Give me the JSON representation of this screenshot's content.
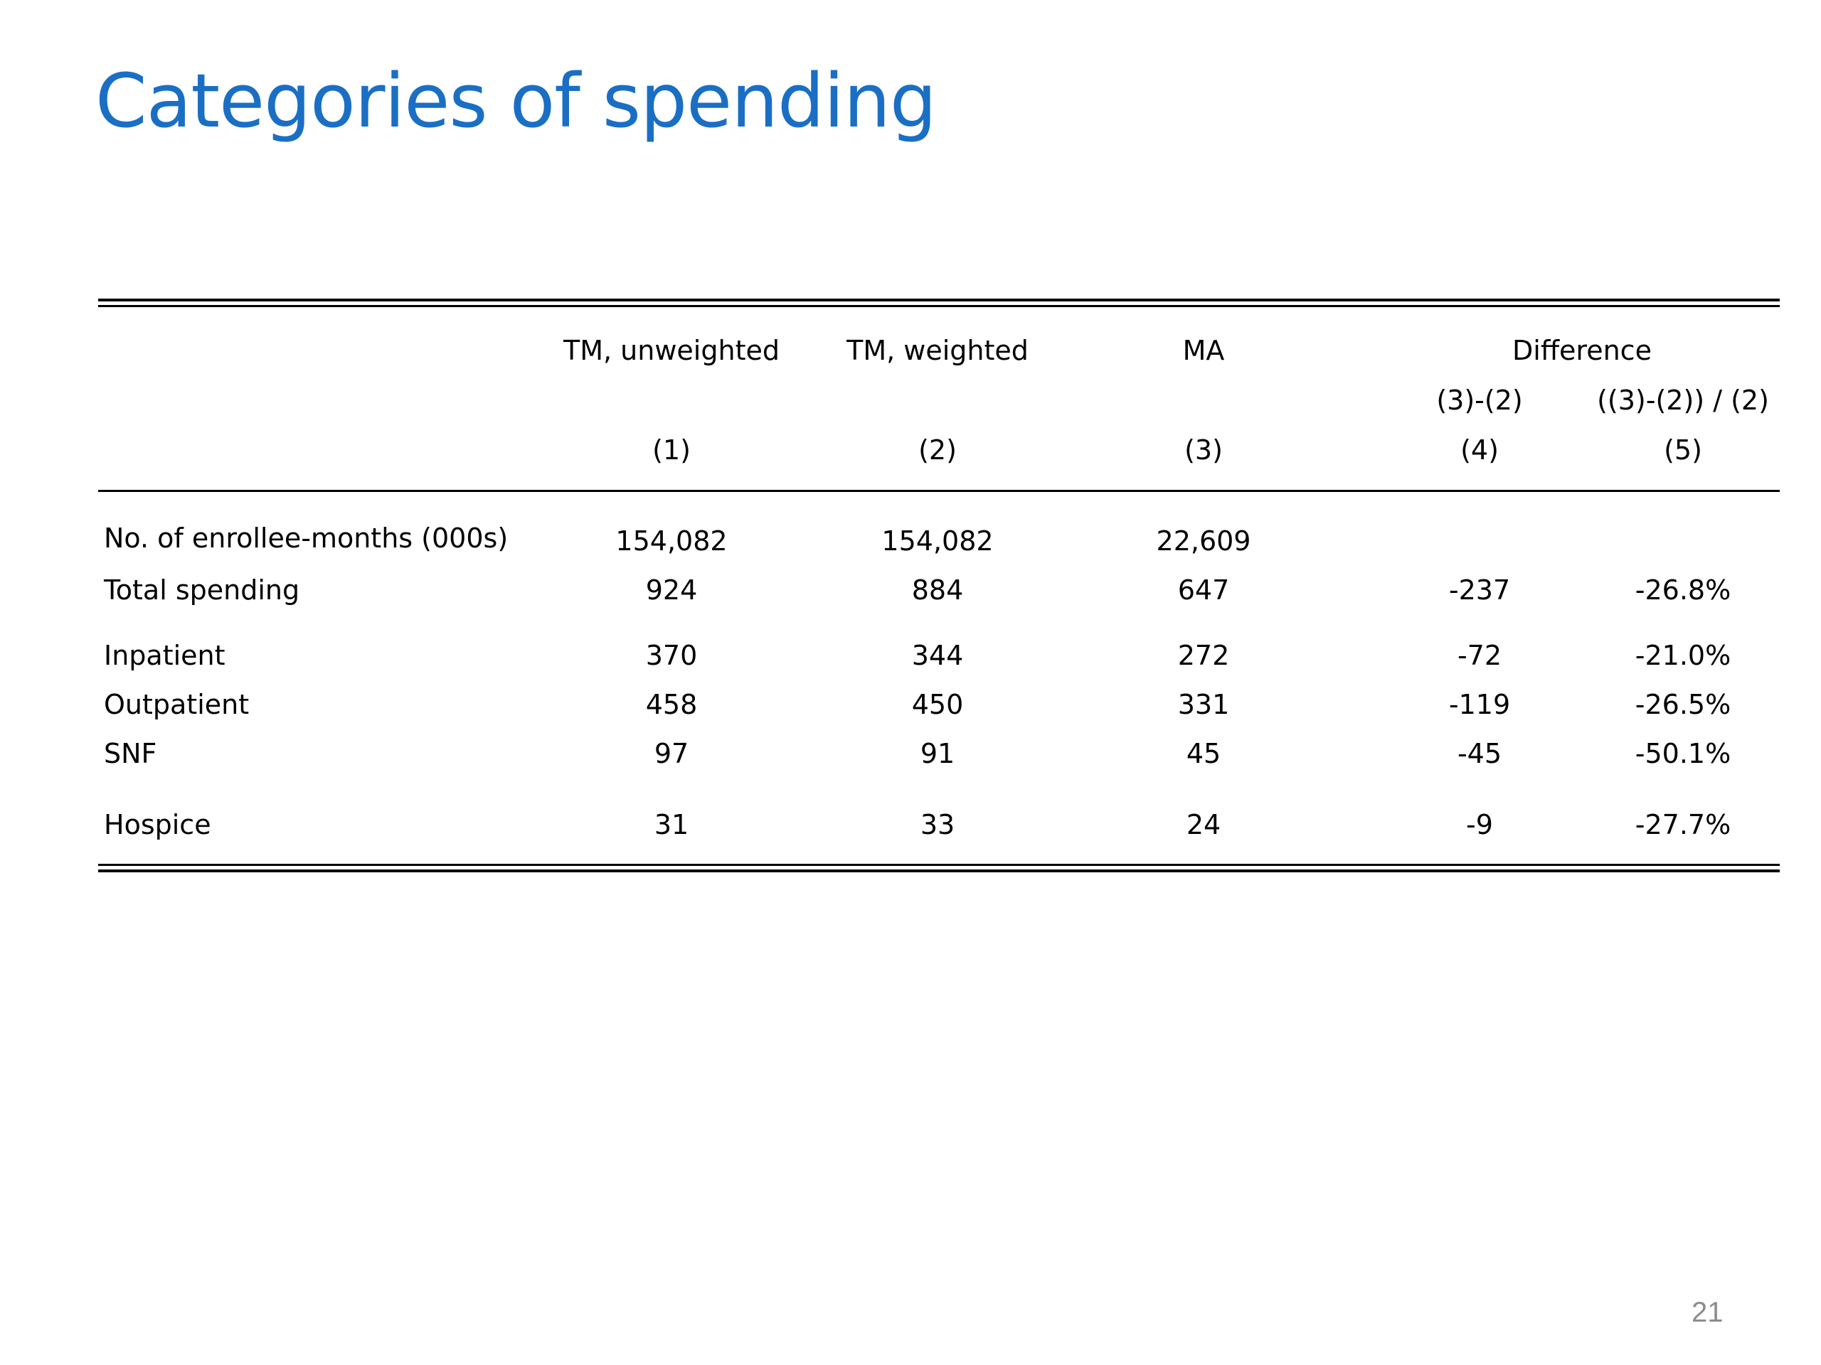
{
  "title": "Categories of spending",
  "page_number": "21",
  "table": {
    "headers": {
      "col1": "TM, unweighted",
      "col2": "TM, weighted",
      "col3": "MA",
      "difference": "Difference",
      "col4_formula": "(3)-(2)",
      "col5_formula": "((3)-(2)) / (2)",
      "col1_num": "(1)",
      "col2_num": "(2)",
      "col3_num": "(3)",
      "col4_num": "(4)",
      "col5_num": "(5)"
    },
    "rows": [
      {
        "label": "No. of enrollee-months (000s)",
        "c1": "154,082",
        "c2": "154,082",
        "c3": "22,609",
        "c4": "",
        "c5": ""
      },
      {
        "label": "Total spending",
        "c1": "924",
        "c2": "884",
        "c3": "647",
        "c4": "-237",
        "c5": "-26.8%"
      },
      {
        "label": "Inpatient",
        "c1": "370",
        "c2": "344",
        "c3": "272",
        "c4": "-72",
        "c5": "-21.0%"
      },
      {
        "label": "Outpatient",
        "c1": "458",
        "c2": "450",
        "c3": "331",
        "c4": "-119",
        "c5": "-26.5%"
      },
      {
        "label": "SNF",
        "c1": "97",
        "c2": "91",
        "c3": "45",
        "c4": "-45",
        "c5": "-50.1%"
      },
      {
        "label": "Hospice",
        "c1": "31",
        "c2": "33",
        "c3": "24",
        "c4": "-9",
        "c5": "-27.7%"
      }
    ]
  }
}
